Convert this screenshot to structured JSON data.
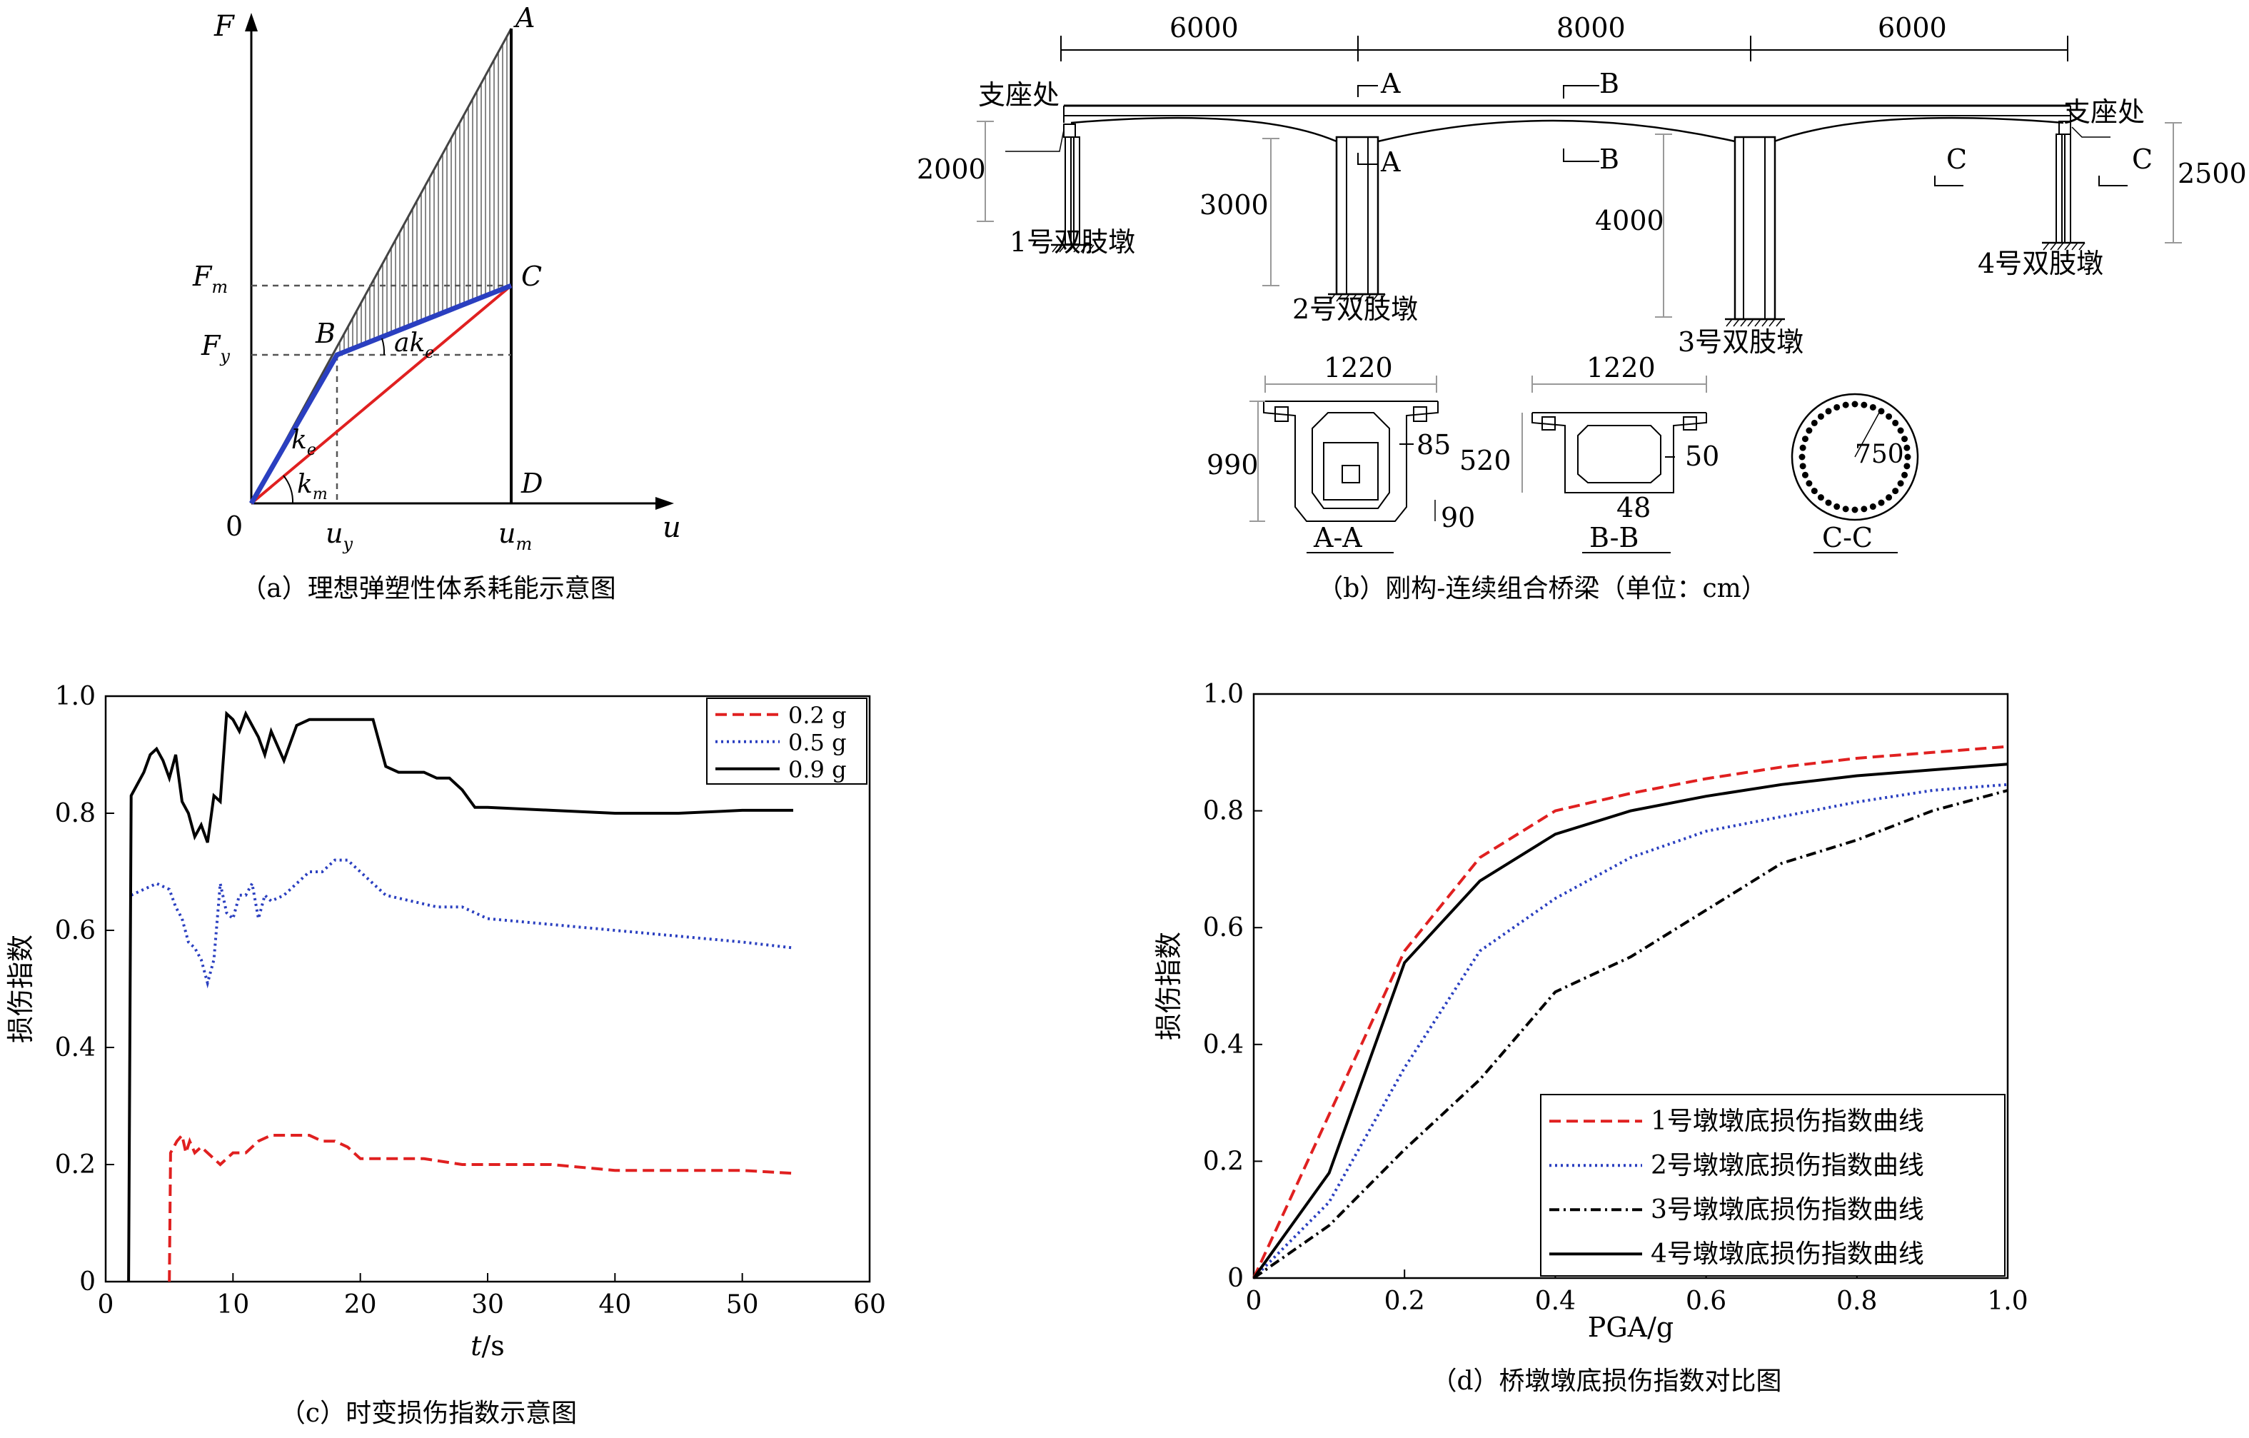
{
  "panel_a": {
    "caption": "（a）理想弹塑性体系耗能示意图",
    "axis_y": "F",
    "axis_x": "u",
    "origin": "0",
    "points": {
      "A": "A",
      "B": "B",
      "C": "C",
      "D": "D"
    },
    "ticks_y": {
      "Fm_main": "F",
      "Fm_sub": "m",
      "Fy_main": "F",
      "Fy_sub": "y"
    },
    "ticks_x": {
      "uy_main": "u",
      "uy_sub": "y",
      "um_main": "u",
      "um_sub": "m"
    },
    "labels": {
      "ke_main": "k",
      "ke_sub": "e",
      "km_main": "k",
      "km_sub": "m",
      "ake_main": "ak",
      "ake_sub": "e"
    },
    "colors": {
      "elastic_plastic": "#2a3fc0",
      "secant": "#e02020",
      "hatch": "#555555"
    }
  },
  "panel_b": {
    "caption": "（b）刚构-连续组合桥梁（单位：cm）",
    "spans": [
      "6000",
      "8000",
      "6000"
    ],
    "bearing_left": "支座处",
    "bearing_right": "支座处",
    "heights": {
      "pier1": "2000",
      "pier2": "3000",
      "pier3": "4000",
      "pier4": "2500"
    },
    "piers": [
      "1号双肢墩",
      "2号双肢墩",
      "3号双肢墩",
      "4号双肢墩"
    ],
    "cut_marks": {
      "A": "A",
      "B": "B",
      "C": "C"
    },
    "section_AA": {
      "label": "A-A",
      "width": "1220",
      "height": "990",
      "web": "85",
      "bottom": "90"
    },
    "section_BB": {
      "label": "B-B",
      "width": "1220",
      "height": "520",
      "web": "50",
      "bottom": "48"
    },
    "section_CC": {
      "label": "C-C",
      "radius": "750"
    }
  },
  "panel_c": {
    "caption": "（c）时变损伤指数示意图",
    "chart_data": {
      "type": "line",
      "xlabel_main": "t",
      "xlabel_unit": "/s",
      "ylabel": "损伤指数",
      "xlim": [
        0,
        60
      ],
      "ylim": [
        0,
        1.0
      ],
      "xticks": [
        "0",
        "10",
        "20",
        "30",
        "40",
        "50",
        "60"
      ],
      "yticks": [
        "0",
        "0.2",
        "0.4",
        "0.6",
        "0.8",
        "1.0"
      ],
      "legend_position": "top-right",
      "series": [
        {
          "name": "0.2 g",
          "color": "#e02020",
          "dash": "dashed",
          "x": [
            5.0,
            5.1,
            5.6,
            6.0,
            6.3,
            6.6,
            7.0,
            7.5,
            8.0,
            8.5,
            9.0,
            10.0,
            11.0,
            12.0,
            13.0,
            14.0,
            15.0,
            16.0,
            17.0,
            18.0,
            19.0,
            20.0,
            22.0,
            25.0,
            28.0,
            30.0,
            35.0,
            40.0,
            45.0,
            50.0,
            54.0
          ],
          "y": [
            0.0,
            0.22,
            0.24,
            0.25,
            0.22,
            0.24,
            0.22,
            0.23,
            0.22,
            0.21,
            0.2,
            0.22,
            0.22,
            0.24,
            0.25,
            0.25,
            0.25,
            0.25,
            0.24,
            0.24,
            0.23,
            0.21,
            0.21,
            0.21,
            0.2,
            0.2,
            0.2,
            0.19,
            0.19,
            0.19,
            0.185
          ]
        },
        {
          "name": "0.5 g",
          "color": "#2a3fc0",
          "dash": "dotted",
          "x": [
            2.0,
            3.0,
            4.0,
            5.0,
            5.5,
            6.0,
            6.5,
            7.0,
            7.5,
            8.0,
            8.5,
            9.0,
            9.5,
            10.0,
            10.5,
            11.0,
            11.5,
            12.0,
            12.5,
            13.0,
            14.0,
            15.0,
            16.0,
            17.0,
            18.0,
            19.0,
            20.0,
            21.0,
            22.0,
            24.0,
            26.0,
            28.0,
            30.0,
            35.0,
            40.0,
            45.0,
            50.0,
            54.0
          ],
          "y": [
            0.66,
            0.67,
            0.68,
            0.67,
            0.64,
            0.62,
            0.58,
            0.57,
            0.55,
            0.51,
            0.55,
            0.68,
            0.63,
            0.62,
            0.66,
            0.66,
            0.68,
            0.62,
            0.66,
            0.65,
            0.66,
            0.68,
            0.7,
            0.7,
            0.72,
            0.72,
            0.7,
            0.68,
            0.66,
            0.65,
            0.64,
            0.64,
            0.62,
            0.61,
            0.6,
            0.59,
            0.58,
            0.57
          ]
        },
        {
          "name": "0.9 g",
          "color": "#000000",
          "dash": "solid",
          "x": [
            1.8,
            2.0,
            2.5,
            3.0,
            3.5,
            4.0,
            4.5,
            5.0,
            5.5,
            6.0,
            6.5,
            7.0,
            7.5,
            8.0,
            8.5,
            9.0,
            9.5,
            10.0,
            10.5,
            11.0,
            11.5,
            12.0,
            12.5,
            13.0,
            14.0,
            15.0,
            16.0,
            17.0,
            18.0,
            19.0,
            20.0,
            21.0,
            22.0,
            23.0,
            24.0,
            25.0,
            26.0,
            27.0,
            28.0,
            29.0,
            30.0,
            35.0,
            40.0,
            45.0,
            50.0,
            54.0
          ],
          "y": [
            0.0,
            0.83,
            0.85,
            0.87,
            0.9,
            0.91,
            0.89,
            0.86,
            0.9,
            0.82,
            0.8,
            0.76,
            0.78,
            0.75,
            0.83,
            0.82,
            0.97,
            0.96,
            0.94,
            0.97,
            0.95,
            0.93,
            0.9,
            0.94,
            0.89,
            0.95,
            0.96,
            0.96,
            0.96,
            0.96,
            0.96,
            0.96,
            0.88,
            0.87,
            0.87,
            0.87,
            0.86,
            0.86,
            0.84,
            0.81,
            0.81,
            0.805,
            0.8,
            0.8,
            0.805,
            0.805
          ]
        }
      ]
    }
  },
  "panel_d": {
    "caption": "（d）桥墩墩底损伤指数对比图",
    "chart_data": {
      "type": "line",
      "xlabel": "PGA/g",
      "ylabel": "损伤指数",
      "xlim": [
        0,
        1.0
      ],
      "ylim": [
        0,
        1.0
      ],
      "xticks": [
        "0",
        "0.2",
        "0.4",
        "0.6",
        "0.8",
        "1.0"
      ],
      "yticks": [
        "0",
        "0.2",
        "0.4",
        "0.6",
        "0.8",
        "1.0"
      ],
      "legend_position": "bottom-right",
      "series": [
        {
          "name": "1号墩墩底损伤指数曲线",
          "color": "#e02020",
          "dash": "dashed",
          "x": [
            0,
            0.1,
            0.2,
            0.3,
            0.4,
            0.5,
            0.6,
            0.7,
            0.8,
            0.9,
            1.0
          ],
          "y": [
            0,
            0.28,
            0.56,
            0.72,
            0.8,
            0.83,
            0.855,
            0.875,
            0.89,
            0.9,
            0.91
          ]
        },
        {
          "name": "2号墩墩底损伤指数曲线",
          "color": "#2a3fc0",
          "dash": "dotted",
          "x": [
            0,
            0.1,
            0.2,
            0.3,
            0.4,
            0.5,
            0.6,
            0.7,
            0.8,
            0.9,
            1.0
          ],
          "y": [
            0,
            0.13,
            0.36,
            0.56,
            0.65,
            0.72,
            0.765,
            0.79,
            0.815,
            0.835,
            0.845
          ]
        },
        {
          "name": "3号墩墩底损伤指数曲线",
          "color": "#000000",
          "dash": "dashdot",
          "x": [
            0,
            0.1,
            0.2,
            0.3,
            0.4,
            0.5,
            0.6,
            0.7,
            0.8,
            0.9,
            1.0
          ],
          "y": [
            0,
            0.09,
            0.22,
            0.34,
            0.49,
            0.55,
            0.63,
            0.71,
            0.75,
            0.8,
            0.835
          ]
        },
        {
          "name": "4号墩墩底损伤指数曲线",
          "color": "#000000",
          "dash": "solid",
          "x": [
            0,
            0.1,
            0.2,
            0.3,
            0.4,
            0.5,
            0.6,
            0.7,
            0.8,
            0.9,
            1.0
          ],
          "y": [
            0,
            0.18,
            0.54,
            0.68,
            0.76,
            0.8,
            0.825,
            0.845,
            0.86,
            0.87,
            0.88
          ]
        }
      ]
    }
  }
}
